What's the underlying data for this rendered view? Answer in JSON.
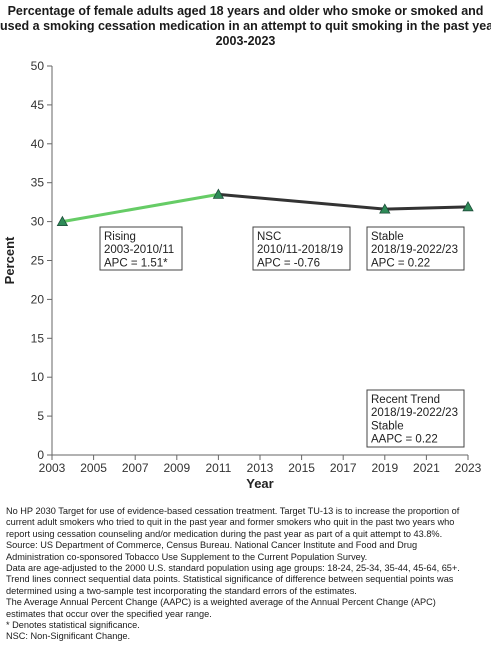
{
  "chart_data": {
    "type": "line",
    "title_lines": [
      "Percentage of  female adults  aged 18 years and older who smoke or smoked and",
      "used a smoking cessation medication in an attempt to quit smoking in the past year,",
      "2003-2023"
    ],
    "xlabel": "Year",
    "ylabel": "Percent",
    "xlim": [
      2003,
      2023
    ],
    "ylim": [
      0,
      50
    ],
    "xticks": [
      2003,
      2005,
      2007,
      2009,
      2011,
      2013,
      2015,
      2017,
      2019,
      2021,
      2023
    ],
    "yticks": [
      0,
      5,
      10,
      15,
      20,
      25,
      30,
      35,
      40,
      45,
      50
    ],
    "grid": false,
    "points": [
      {
        "x": 2003.5,
        "y": 30.0
      },
      {
        "x": 2011.0,
        "y": 33.5
      },
      {
        "x": 2019.0,
        "y": 31.6
      },
      {
        "x": 2023.0,
        "y": 31.9
      }
    ],
    "segments": [
      {
        "from": 0,
        "to": 1,
        "color": "#66cc66"
      },
      {
        "from": 1,
        "to": 3,
        "color": "#333333"
      }
    ],
    "marker_color": "#2e8b57",
    "annotations": [
      {
        "lines": [
          "Rising",
          "2003-2010/11",
          "APC =  1.51*"
        ]
      },
      {
        "lines": [
          "NSC",
          "2010/11-2018/19",
          "APC = -0.76"
        ]
      },
      {
        "lines": [
          "Stable",
          "2018/19-2022/23",
          "APC =  0.22"
        ]
      },
      {
        "lines": [
          "Recent Trend",
          "2018/19-2022/23",
          "Stable",
          "AAPC =  0.22"
        ]
      }
    ]
  },
  "footnotes": [
    "No HP 2030 Target for use of evidence-based cessation treatment. Target TU-13 is to increase the proportion of",
    "current adult smokers who tried to quit in the past year and former smokers who quit in the past two years who",
    "report using cessation counseling and/or medication during the past year as part of a quit attempt to 43.8%.",
    "Source: US Department of Commerce, Census Bureau. National Cancer Institute and Food and Drug",
    "Administration co-sponsored Tobacco Use Supplement to the Current Population Survey.",
    "Data are age-adjusted to the 2000 U.S. standard population using age groups: 18-24, 25-34, 35-44, 45-64, 65+.",
    "Trend lines connect sequential data points. Statistical significance of difference between sequential points was",
    "determined using a two-sample test incorporating the standard errors of the estimates.",
    "The Average Annual Percent Change (AAPC) is a weighted average of the Annual Percent Change (APC)",
    "estimates that occur over the specified year range.",
    "* Denotes statistical significance.",
    "NSC: Non-Significant Change."
  ]
}
